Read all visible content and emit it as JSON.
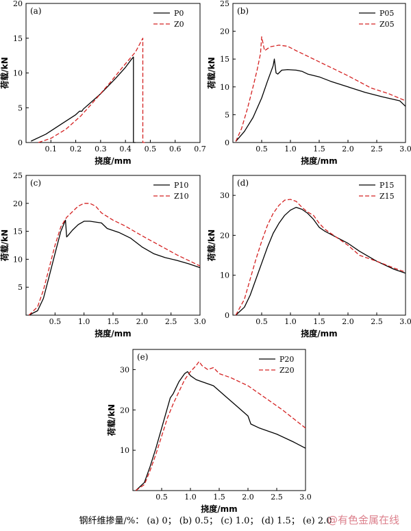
{
  "chart_data": [
    {
      "type": "line",
      "panel_label": "(a)",
      "xlabel": "挠度/mm",
      "ylabel": "荷载/kN",
      "xlim": [
        0,
        0.7
      ],
      "ylim": [
        0,
        20
      ],
      "xticks": [
        0.1,
        0.2,
        0.3,
        0.4,
        0.5,
        0.6,
        0.7
      ],
      "yticks": [
        0,
        5,
        10,
        15,
        20
      ],
      "xtick_labels": [
        "0.1",
        "0.2",
        "0.3",
        "0.4",
        "0.5",
        "0.6",
        "0.7"
      ],
      "ytick_labels": [
        "0",
        "5",
        "10",
        "15",
        "20"
      ],
      "series": [
        {
          "name": "P0",
          "style": "solid",
          "x": [
            0.02,
            0.08,
            0.14,
            0.2,
            0.215,
            0.225,
            0.23,
            0.3,
            0.36,
            0.4,
            0.425,
            0.432,
            0.432,
            0.44
          ],
          "y": [
            0.2,
            1.2,
            2.6,
            4.0,
            4.5,
            4.5,
            4.8,
            7.0,
            9.2,
            10.8,
            12.0,
            12.3,
            0.0,
            0.0
          ]
        },
        {
          "name": "Z0",
          "style": "dashed",
          "x": [
            0.05,
            0.1,
            0.16,
            0.22,
            0.28,
            0.34,
            0.39,
            0.44,
            0.47,
            0.47,
            0.478
          ],
          "y": [
            0.0,
            0.6,
            1.9,
            3.8,
            6.2,
            8.7,
            10.9,
            13.0,
            15.0,
            0.0,
            0.0
          ]
        }
      ]
    },
    {
      "type": "line",
      "panel_label": "(b)",
      "xlabel": "挠度/mm",
      "ylabel": "荷载/kN",
      "xlim": [
        0,
        3.0
      ],
      "ylim": [
        0,
        25
      ],
      "xticks": [
        0.5,
        1.0,
        1.5,
        2.0,
        2.5,
        3.0
      ],
      "yticks": [
        0,
        5,
        10,
        15,
        20,
        25
      ],
      "xtick_labels": [
        "0.5",
        "1.0",
        "1.5",
        "2.0",
        "2.5",
        "3.0"
      ],
      "ytick_labels": [
        "0",
        "5",
        "10",
        "15",
        "20",
        "25"
      ],
      "series": [
        {
          "name": "P05",
          "style": "solid",
          "x": [
            0.05,
            0.2,
            0.35,
            0.5,
            0.6,
            0.7,
            0.72,
            0.75,
            0.78,
            0.85,
            0.95,
            1.1,
            1.2,
            1.3,
            1.5,
            1.7,
            2.0,
            2.3,
            2.6,
            2.9,
            2.95,
            3.0
          ],
          "y": [
            0.2,
            2.0,
            4.5,
            8.0,
            11.0,
            13.8,
            15.0,
            12.5,
            12.3,
            13.0,
            13.1,
            13.0,
            12.8,
            12.3,
            11.8,
            11.0,
            10.0,
            9.0,
            8.2,
            7.5,
            7.0,
            6.5
          ]
        },
        {
          "name": "Z05",
          "style": "dashed",
          "x": [
            0.05,
            0.15,
            0.25,
            0.35,
            0.42,
            0.48,
            0.5,
            0.55,
            0.65,
            0.8,
            0.95,
            1.1,
            1.3,
            1.6,
            2.0,
            2.4,
            2.7,
            3.0
          ],
          "y": [
            0.2,
            2.5,
            6.0,
            10.0,
            13.0,
            16.0,
            19.0,
            16.5,
            17.2,
            17.5,
            17.3,
            16.5,
            15.5,
            14.0,
            12.0,
            9.8,
            8.8,
            7.5
          ]
        }
      ]
    },
    {
      "type": "line",
      "panel_label": "(c)",
      "xlabel": "挠度/mm",
      "ylabel": "荷载/kN",
      "xlim": [
        0,
        3.0
      ],
      "ylim": [
        0,
        25
      ],
      "xticks": [
        0.5,
        1.0,
        1.5,
        2.0,
        2.5,
        3.0
      ],
      "yticks": [
        5,
        10,
        15,
        20,
        25
      ],
      "xtick_labels": [
        "0.5",
        "1.0",
        "1.5",
        "2.0",
        "2.5",
        "3.0"
      ],
      "ytick_labels": [
        "5",
        "10",
        "15",
        "20",
        "25"
      ],
      "series": [
        {
          "name": "P10",
          "style": "solid",
          "x": [
            0.05,
            0.2,
            0.3,
            0.4,
            0.5,
            0.6,
            0.68,
            0.7,
            0.72,
            0.8,
            0.9,
            1.0,
            1.1,
            1.3,
            1.4,
            1.6,
            1.8,
            2.0,
            2.2,
            2.4,
            2.6,
            2.8,
            3.0
          ],
          "y": [
            0.0,
            0.8,
            3.0,
            7.0,
            11.0,
            15.0,
            17.0,
            14.0,
            14.2,
            15.2,
            16.2,
            16.8,
            16.8,
            16.5,
            15.5,
            14.8,
            13.8,
            12.2,
            11.0,
            10.3,
            9.8,
            9.2,
            8.5
          ]
        },
        {
          "name": "Z10",
          "style": "dashed",
          "x": [
            0.05,
            0.2,
            0.3,
            0.4,
            0.5,
            0.6,
            0.7,
            0.8,
            0.9,
            1.0,
            1.1,
            1.2,
            1.3,
            1.5,
            1.7,
            2.0,
            2.3,
            2.6,
            3.0
          ],
          "y": [
            0.0,
            1.5,
            4.5,
            8.5,
            12.5,
            15.8,
            17.5,
            18.5,
            19.5,
            20.0,
            20.0,
            19.5,
            18.3,
            17.0,
            16.0,
            14.2,
            12.5,
            10.8,
            8.8
          ]
        }
      ]
    },
    {
      "type": "line",
      "panel_label": "(d)",
      "xlabel": "挠度/mm",
      "ylabel": "荷载/kN",
      "xlim": [
        0,
        3.0
      ],
      "ylim": [
        0,
        35
      ],
      "xticks": [
        0.5,
        1.0,
        1.5,
        2.0,
        2.5,
        3.0
      ],
      "yticks": [
        0,
        10,
        20,
        30
      ],
      "xtick_labels": [
        "0.5",
        "1.0",
        "1.5",
        "2.0",
        "2.5",
        "3.0"
      ],
      "ytick_labels": [
        "0",
        "10",
        "20",
        "30"
      ],
      "series": [
        {
          "name": "P15",
          "style": "solid",
          "x": [
            0.05,
            0.2,
            0.3,
            0.4,
            0.5,
            0.6,
            0.7,
            0.8,
            0.9,
            1.0,
            1.1,
            1.2,
            1.3,
            1.4,
            1.5,
            1.6,
            1.8,
            2.0,
            2.2,
            2.5,
            2.8,
            3.0
          ],
          "y": [
            0.0,
            2.0,
            5.0,
            9.0,
            13.0,
            17.0,
            20.5,
            23.0,
            25.0,
            26.3,
            27.0,
            26.5,
            25.5,
            24.0,
            22.0,
            21.0,
            19.5,
            18.0,
            16.0,
            13.5,
            11.5,
            10.5
          ]
        },
        {
          "name": "Z15",
          "style": "dashed",
          "x": [
            0.05,
            0.2,
            0.3,
            0.4,
            0.5,
            0.6,
            0.7,
            0.8,
            0.9,
            1.0,
            1.1,
            1.2,
            1.3,
            1.4,
            1.5,
            1.6,
            1.8,
            2.0,
            2.2,
            2.5,
            2.8,
            3.0
          ],
          "y": [
            0.0,
            4.0,
            9.0,
            14.0,
            18.5,
            22.5,
            25.5,
            27.5,
            28.8,
            29.0,
            28.5,
            27.0,
            25.8,
            25.0,
            23.0,
            21.5,
            19.5,
            17.5,
            15.0,
            13.5,
            11.8,
            10.8
          ]
        }
      ]
    },
    {
      "type": "line",
      "panel_label": "(e)",
      "xlabel": "挠度/mm",
      "ylabel": "荷载/kN",
      "xlim": [
        0,
        3.0
      ],
      "ylim": [
        0,
        35
      ],
      "xticks": [
        0.5,
        1.0,
        1.5,
        2.0,
        2.5,
        3.0
      ],
      "yticks": [
        10,
        20,
        30
      ],
      "xtick_labels": [
        "0.5",
        "1.0",
        "1.5",
        "2.0",
        "2.5",
        "3.0"
      ],
      "ytick_labels": [
        "10",
        "20",
        "30"
      ],
      "series": [
        {
          "name": "P20",
          "style": "solid",
          "x": [
            0.05,
            0.2,
            0.3,
            0.4,
            0.5,
            0.6,
            0.65,
            0.7,
            0.8,
            0.9,
            0.95,
            1.0,
            1.1,
            1.2,
            1.4,
            1.6,
            1.8,
            2.0,
            2.05,
            2.2,
            2.5,
            2.8,
            3.0
          ],
          "y": [
            0.0,
            2.0,
            6.0,
            10.5,
            15.5,
            20.5,
            23.0,
            24.0,
            27.0,
            29.0,
            29.5,
            28.5,
            27.5,
            27.0,
            26.0,
            23.5,
            21.0,
            18.5,
            16.5,
            15.5,
            14.0,
            12.0,
            10.5
          ]
        },
        {
          "name": "Z20",
          "style": "dashed",
          "x": [
            0.05,
            0.2,
            0.3,
            0.4,
            0.5,
            0.6,
            0.7,
            0.8,
            0.9,
            1.0,
            1.1,
            1.15,
            1.2,
            1.3,
            1.4,
            1.5,
            1.7,
            2.0,
            2.3,
            2.6,
            3.0
          ],
          "y": [
            0.0,
            1.5,
            5.0,
            9.0,
            13.5,
            18.0,
            21.5,
            24.5,
            27.5,
            29.5,
            31.0,
            32.0,
            31.0,
            30.0,
            30.5,
            29.0,
            28.0,
            26.0,
            23.0,
            20.0,
            15.5
          ]
        }
      ]
    }
  ],
  "caption": "钢纤维掺量/%： (a) 0； (b) 0.5； (c) 1.0； (d) 1.5； (e) 2.0",
  "watermark": "@有色金属在线",
  "colors": {
    "solid": "#000000",
    "dashed": "#d42020"
  }
}
